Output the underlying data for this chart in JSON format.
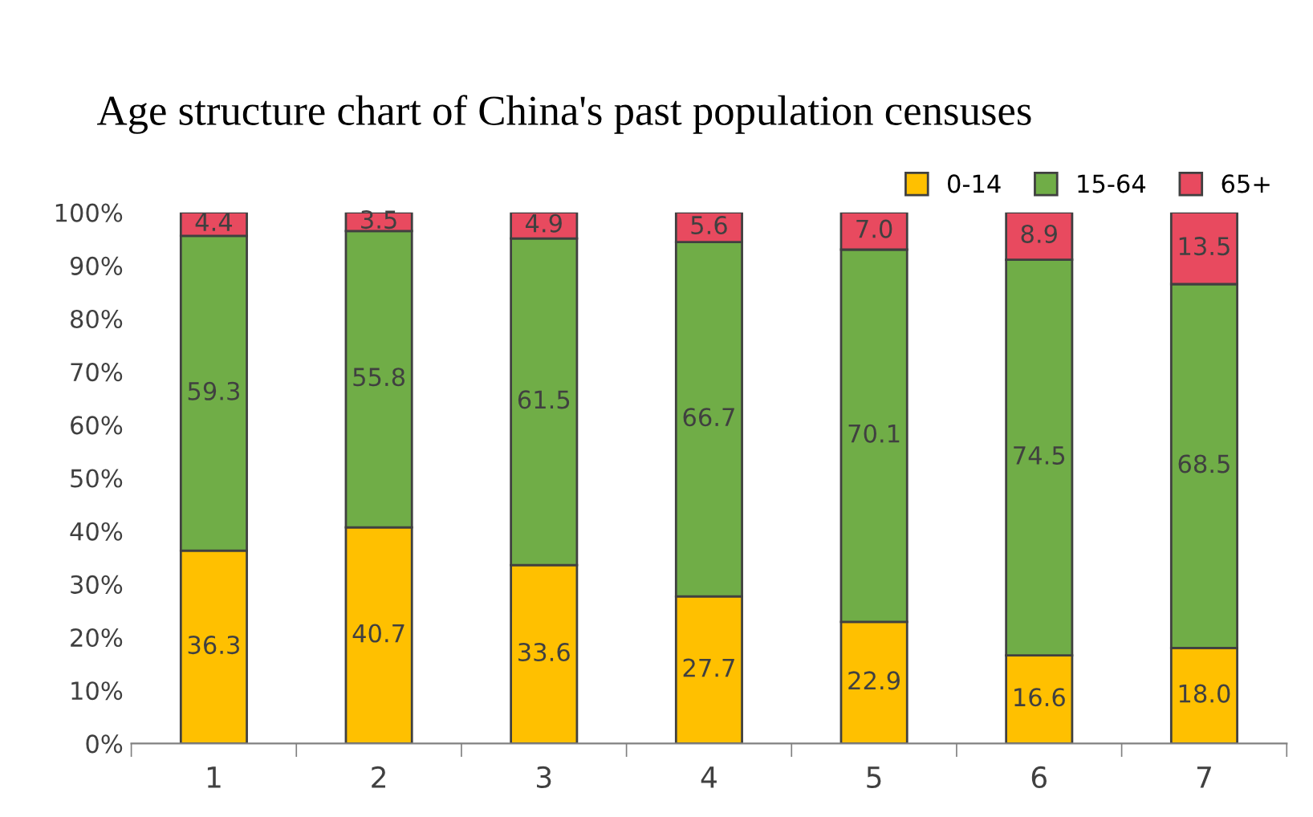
{
  "chart_data": {
    "type": "bar",
    "stacked": true,
    "title": "Age structure chart of China's past population censuses",
    "categories": [
      "1",
      "2",
      "3",
      "4",
      "5",
      "6",
      "7"
    ],
    "series": [
      {
        "name": "0-14",
        "color": "#ffc000",
        "values": [
          36.3,
          40.7,
          33.6,
          27.7,
          22.9,
          16.6,
          18.0
        ],
        "value_labels": [
          "36.3",
          "40.7",
          "33.6",
          "27.7",
          "22.9",
          "16.6",
          "18.0"
        ]
      },
      {
        "name": "15-64",
        "color": "#70ad47",
        "values": [
          59.3,
          55.8,
          61.5,
          66.7,
          70.1,
          74.5,
          68.5
        ],
        "value_labels": [
          "59.3",
          "55.8",
          "61.5",
          "66.7",
          "70.1",
          "74.5",
          "68.5"
        ]
      },
      {
        "name": "65+",
        "color": "#e84a5f",
        "values": [
          4.4,
          3.5,
          4.9,
          5.6,
          7.0,
          8.9,
          13.5
        ],
        "value_labels": [
          "4.4",
          "3.5",
          "4.9",
          "5.6",
          "7.0",
          "8.9",
          "13.5"
        ]
      }
    ],
    "ylim": [
      0,
      100
    ],
    "yticks": [
      {
        "value": 0,
        "label": "0%"
      },
      {
        "value": 10,
        "label": "10%"
      },
      {
        "value": 20,
        "label": "20%"
      },
      {
        "value": 30,
        "label": "30%"
      },
      {
        "value": 40,
        "label": "40%"
      },
      {
        "value": 50,
        "label": "50%"
      },
      {
        "value": 60,
        "label": "60%"
      },
      {
        "value": 70,
        "label": "70%"
      },
      {
        "value": 80,
        "label": "80%"
      },
      {
        "value": 90,
        "label": "90%"
      },
      {
        "value": 100,
        "label": "100%"
      }
    ],
    "legend": "top right",
    "grid": false
  }
}
